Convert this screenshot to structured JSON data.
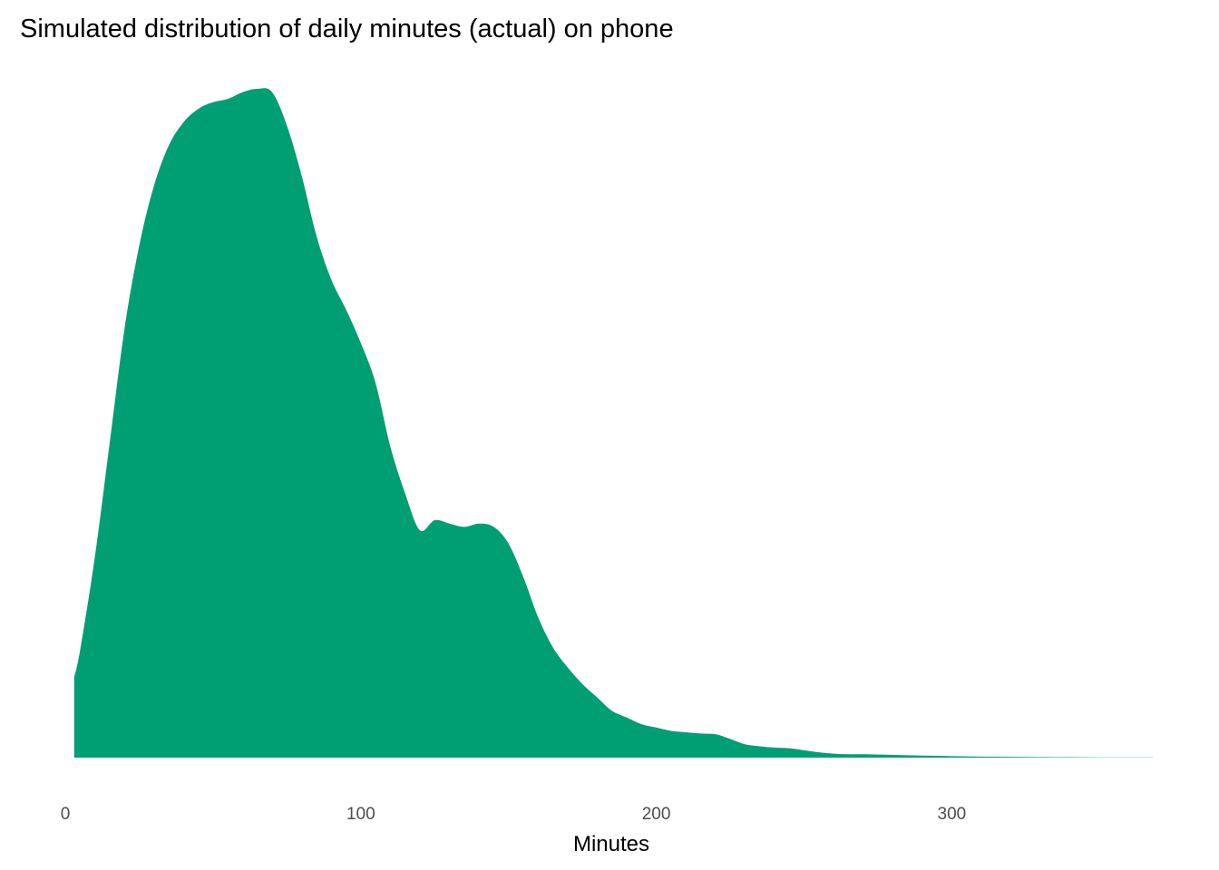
{
  "chart_data": {
    "type": "area",
    "title": "Simulated distribution of daily minutes (actual) on phone",
    "xlabel": "Minutes",
    "ylabel": "",
    "xlim": [
      0,
      368
    ],
    "ylim": [
      0,
      1
    ],
    "xticks": [
      0,
      100,
      200,
      300
    ],
    "xtick_labels": [
      "0",
      "100",
      "200",
      "300"
    ],
    "grid": false,
    "legend": "none",
    "fill_color": "#009E73",
    "series": [
      {
        "x": [
          3,
          5,
          10,
          15,
          20,
          25,
          30,
          35,
          40,
          45,
          50,
          55,
          60,
          65,
          70,
          75,
          80,
          85,
          90,
          95,
          100,
          105,
          110,
          115,
          120,
          125,
          130,
          135,
          140,
          145,
          150,
          155,
          160,
          165,
          170,
          175,
          180,
          185,
          190,
          195,
          200,
          205,
          210,
          215,
          220,
          225,
          230,
          235,
          240,
          245,
          250,
          255,
          260,
          265,
          270,
          280,
          290,
          300,
          310,
          320,
          330,
          340,
          350,
          360,
          368
        ],
        "values": [
          0.12,
          0.16,
          0.3,
          0.47,
          0.64,
          0.765,
          0.855,
          0.915,
          0.95,
          0.97,
          0.98,
          0.985,
          0.995,
          1.0,
          0.995,
          0.945,
          0.87,
          0.78,
          0.715,
          0.67,
          0.62,
          0.56,
          0.465,
          0.395,
          0.34,
          0.355,
          0.35,
          0.345,
          0.35,
          0.345,
          0.32,
          0.27,
          0.21,
          0.165,
          0.135,
          0.11,
          0.09,
          0.07,
          0.06,
          0.05,
          0.045,
          0.04,
          0.038,
          0.036,
          0.035,
          0.028,
          0.02,
          0.017,
          0.015,
          0.014,
          0.011,
          0.008,
          0.006,
          0.005,
          0.005,
          0.004,
          0.003,
          0.0022,
          0.0015,
          0.0012,
          0.0008,
          0.0006,
          0.0004,
          0.0003,
          0.0003
        ]
      }
    ]
  }
}
